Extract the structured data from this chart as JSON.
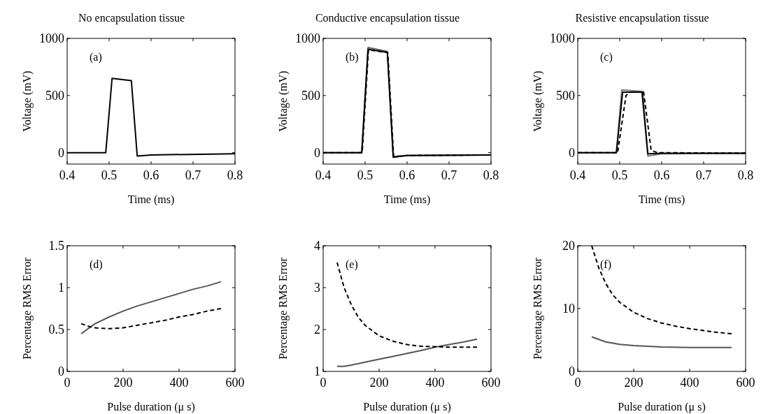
{
  "chart_data": [
    {
      "type": "line",
      "title": "No encapsulation tissue",
      "xlabel": "Time (ms)",
      "ylabel": "Voltage (mV)",
      "annotations": [
        "(a)"
      ],
      "xlim": [
        0.4,
        0.8
      ],
      "xticks": [
        0.4,
        0.5,
        0.6,
        0.7,
        0.8
      ],
      "ylim": [
        -100,
        1000
      ],
      "yticks": [
        0,
        500,
        1000
      ],
      "series": [
        {
          "color": "#000000",
          "line_style": "solid",
          "x": [
            0.4,
            0.492,
            0.507,
            0.553,
            0.567,
            0.6,
            0.8
          ],
          "values": [
            0,
            0,
            650,
            630,
            -30,
            -20,
            -10
          ]
        }
      ]
    },
    {
      "type": "line",
      "title": "Conductive encapsulation tissue",
      "xlabel": "Time (ms)",
      "ylabel": "Voltage (mV)",
      "annotations": [
        "(b)"
      ],
      "xlim": [
        0.4,
        0.8
      ],
      "xticks": [
        0.4,
        0.5,
        0.6,
        0.7,
        0.8
      ],
      "ylim": [
        -100,
        1000
      ],
      "yticks": [
        0,
        500,
        1000
      ],
      "series": [
        {
          "color": "#666666",
          "line_style": "solid",
          "x": [
            0.4,
            0.492,
            0.507,
            0.553,
            0.567,
            0.6,
            0.8
          ],
          "values": [
            0,
            0,
            920,
            885,
            -35,
            -25,
            -20
          ]
        },
        {
          "color": "#000000",
          "line_style": "solid",
          "x": [
            0.4,
            0.492,
            0.507,
            0.553,
            0.567,
            0.6,
            0.8
          ],
          "values": [
            0,
            0,
            905,
            878,
            -40,
            -25,
            -20
          ]
        },
        {
          "color": "#000000",
          "line_style": "dashed",
          "x": [
            0.4,
            0.493,
            0.508,
            0.554,
            0.568,
            0.6,
            0.8
          ],
          "values": [
            0,
            0,
            900,
            875,
            -35,
            -25,
            -20
          ]
        }
      ]
    },
    {
      "type": "line",
      "title": "Resistive encapsulation tissue",
      "xlabel": "Time (ms)",
      "ylabel": "Voltage (mV)",
      "annotations": [
        "(c)"
      ],
      "xlim": [
        0.4,
        0.8
      ],
      "xticks": [
        0.4,
        0.5,
        0.6,
        0.7,
        0.8
      ],
      "ylim": [
        -100,
        1000
      ],
      "yticks": [
        0,
        500,
        1000
      ],
      "series": [
        {
          "color": "#777777",
          "line_style": "solid",
          "x": [
            0.4,
            0.492,
            0.505,
            0.555,
            0.567,
            0.6,
            0.8
          ],
          "values": [
            0,
            0,
            550,
            535,
            -30,
            -10,
            -5
          ]
        },
        {
          "color": "#000000",
          "line_style": "solid",
          "x": [
            0.4,
            0.492,
            0.507,
            0.553,
            0.567,
            0.6,
            0.8
          ],
          "values": [
            0,
            0,
            530,
            530,
            -10,
            -5,
            -5
          ]
        },
        {
          "color": "#000000",
          "line_style": "dashed",
          "x": [
            0.4,
            0.495,
            0.515,
            0.525,
            0.557,
            0.575,
            0.59,
            0.8
          ],
          "values": [
            0,
            0,
            500,
            530,
            530,
            20,
            0,
            -5
          ]
        }
      ]
    },
    {
      "type": "line",
      "xlabel": "Pulse duration (μ s)",
      "ylabel": "Percentage RMS Error",
      "annotations": [
        "(d)"
      ],
      "xlim": [
        0,
        600
      ],
      "xticks": [
        0,
        200,
        400,
        600
      ],
      "ylim": [
        0,
        1.5
      ],
      "yticks": [
        0,
        0.5,
        1,
        1.5
      ],
      "series": [
        {
          "color": "#555555",
          "line_style": "solid",
          "x": [
            50,
            100,
            150,
            200,
            250,
            300,
            350,
            400,
            450,
            500,
            550
          ],
          "values": [
            0.45,
            0.57,
            0.65,
            0.72,
            0.78,
            0.83,
            0.88,
            0.93,
            0.98,
            1.02,
            1.07
          ]
        },
        {
          "color": "#000000",
          "line_style": "dashed",
          "x": [
            50,
            75,
            100,
            150,
            200,
            250,
            300,
            350,
            400,
            450,
            500,
            550
          ],
          "values": [
            0.57,
            0.54,
            0.52,
            0.51,
            0.52,
            0.55,
            0.58,
            0.61,
            0.65,
            0.68,
            0.72,
            0.75
          ]
        }
      ]
    },
    {
      "type": "line",
      "xlabel": "Pulse duration (μ s)",
      "ylabel": "Percentage RMS Error",
      "annotations": [
        "(e)"
      ],
      "xlim": [
        0,
        600
      ],
      "xticks": [
        0,
        200,
        400,
        600
      ],
      "ylim": [
        1,
        4
      ],
      "yticks": [
        1,
        2,
        3,
        4
      ],
      "series": [
        {
          "color": "#555555",
          "line_style": "solid",
          "x": [
            50,
            75,
            100,
            150,
            200,
            250,
            300,
            350,
            400,
            450,
            500,
            550
          ],
          "values": [
            1.12,
            1.12,
            1.15,
            1.22,
            1.29,
            1.36,
            1.43,
            1.5,
            1.58,
            1.64,
            1.7,
            1.77
          ]
        },
        {
          "color": "#000000",
          "line_style": "dashed",
          "x": [
            50,
            75,
            100,
            125,
            150,
            200,
            250,
            300,
            350,
            400,
            450,
            550
          ],
          "values": [
            3.6,
            3.0,
            2.6,
            2.3,
            2.1,
            1.85,
            1.72,
            1.64,
            1.6,
            1.59,
            1.58,
            1.58
          ]
        }
      ]
    },
    {
      "type": "line",
      "xlabel": "Pulse duration (μ s)",
      "ylabel": "Percentage RMS Error",
      "annotations": [
        "(f)"
      ],
      "xlim": [
        0,
        600
      ],
      "xticks": [
        0,
        200,
        400,
        600
      ],
      "ylim": [
        0,
        20
      ],
      "yticks": [
        0,
        10,
        20
      ],
      "series": [
        {
          "color": "#555555",
          "line_style": "solid",
          "x": [
            50,
            100,
            150,
            200,
            300,
            400,
            550
          ],
          "values": [
            5.5,
            4.7,
            4.3,
            4.1,
            3.9,
            3.8,
            3.8
          ]
        },
        {
          "color": "#000000",
          "line_style": "dashed",
          "x": [
            50,
            75,
            100,
            125,
            150,
            200,
            250,
            300,
            350,
            400,
            450,
            500,
            550
          ],
          "values": [
            20,
            16.5,
            14,
            12.2,
            11,
            9.4,
            8.4,
            7.7,
            7.2,
            6.8,
            6.5,
            6.2,
            6.0
          ]
        }
      ]
    }
  ]
}
